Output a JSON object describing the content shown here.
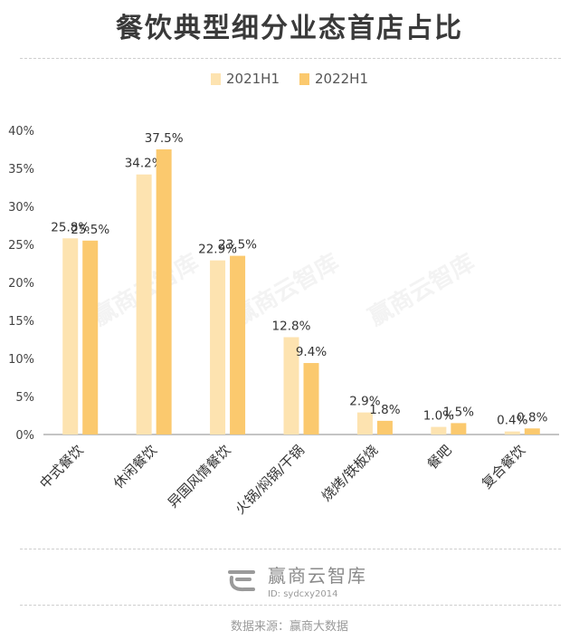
{
  "title": "餐饮典型细分业态首店占比",
  "watermark": "赢商云智库",
  "footer": {
    "brand": "赢商云智库",
    "id": "ID: sydcxy2014",
    "source": "数据来源：赢商大数据"
  },
  "colors": {
    "series1": "#fde3b0",
    "series2": "#fbc96e",
    "axis": "#888888",
    "text": "#333333"
  },
  "chart_data": {
    "type": "bar",
    "categories": [
      "中式餐饮",
      "休闲餐饮",
      "异国风情餐饮",
      "火锅/焖锅/干锅",
      "烧烤/铁板烧",
      "餐吧",
      "复合餐饮"
    ],
    "series": [
      {
        "name": "2021H1",
        "values": [
          25.8,
          34.2,
          22.9,
          12.8,
          2.9,
          1.0,
          0.4
        ],
        "labels": [
          "25.8%",
          "34.2%",
          "22.9%",
          "12.8%",
          "2.9%",
          "1.0%",
          "0.4%"
        ]
      },
      {
        "name": "2022H1",
        "values": [
          25.5,
          37.5,
          23.5,
          9.4,
          1.8,
          1.5,
          0.8
        ],
        "labels": [
          "25.5%",
          "37.5%",
          "23.5%",
          "9.4%",
          "1.8%",
          "1.5%",
          "0.8%"
        ]
      }
    ],
    "yticks": [
      "0%",
      "5%",
      "10%",
      "15%",
      "20%",
      "25%",
      "30%",
      "35%",
      "40%"
    ],
    "ylim": [
      0,
      40
    ],
    "legend_position": "top-center",
    "grid": false
  }
}
